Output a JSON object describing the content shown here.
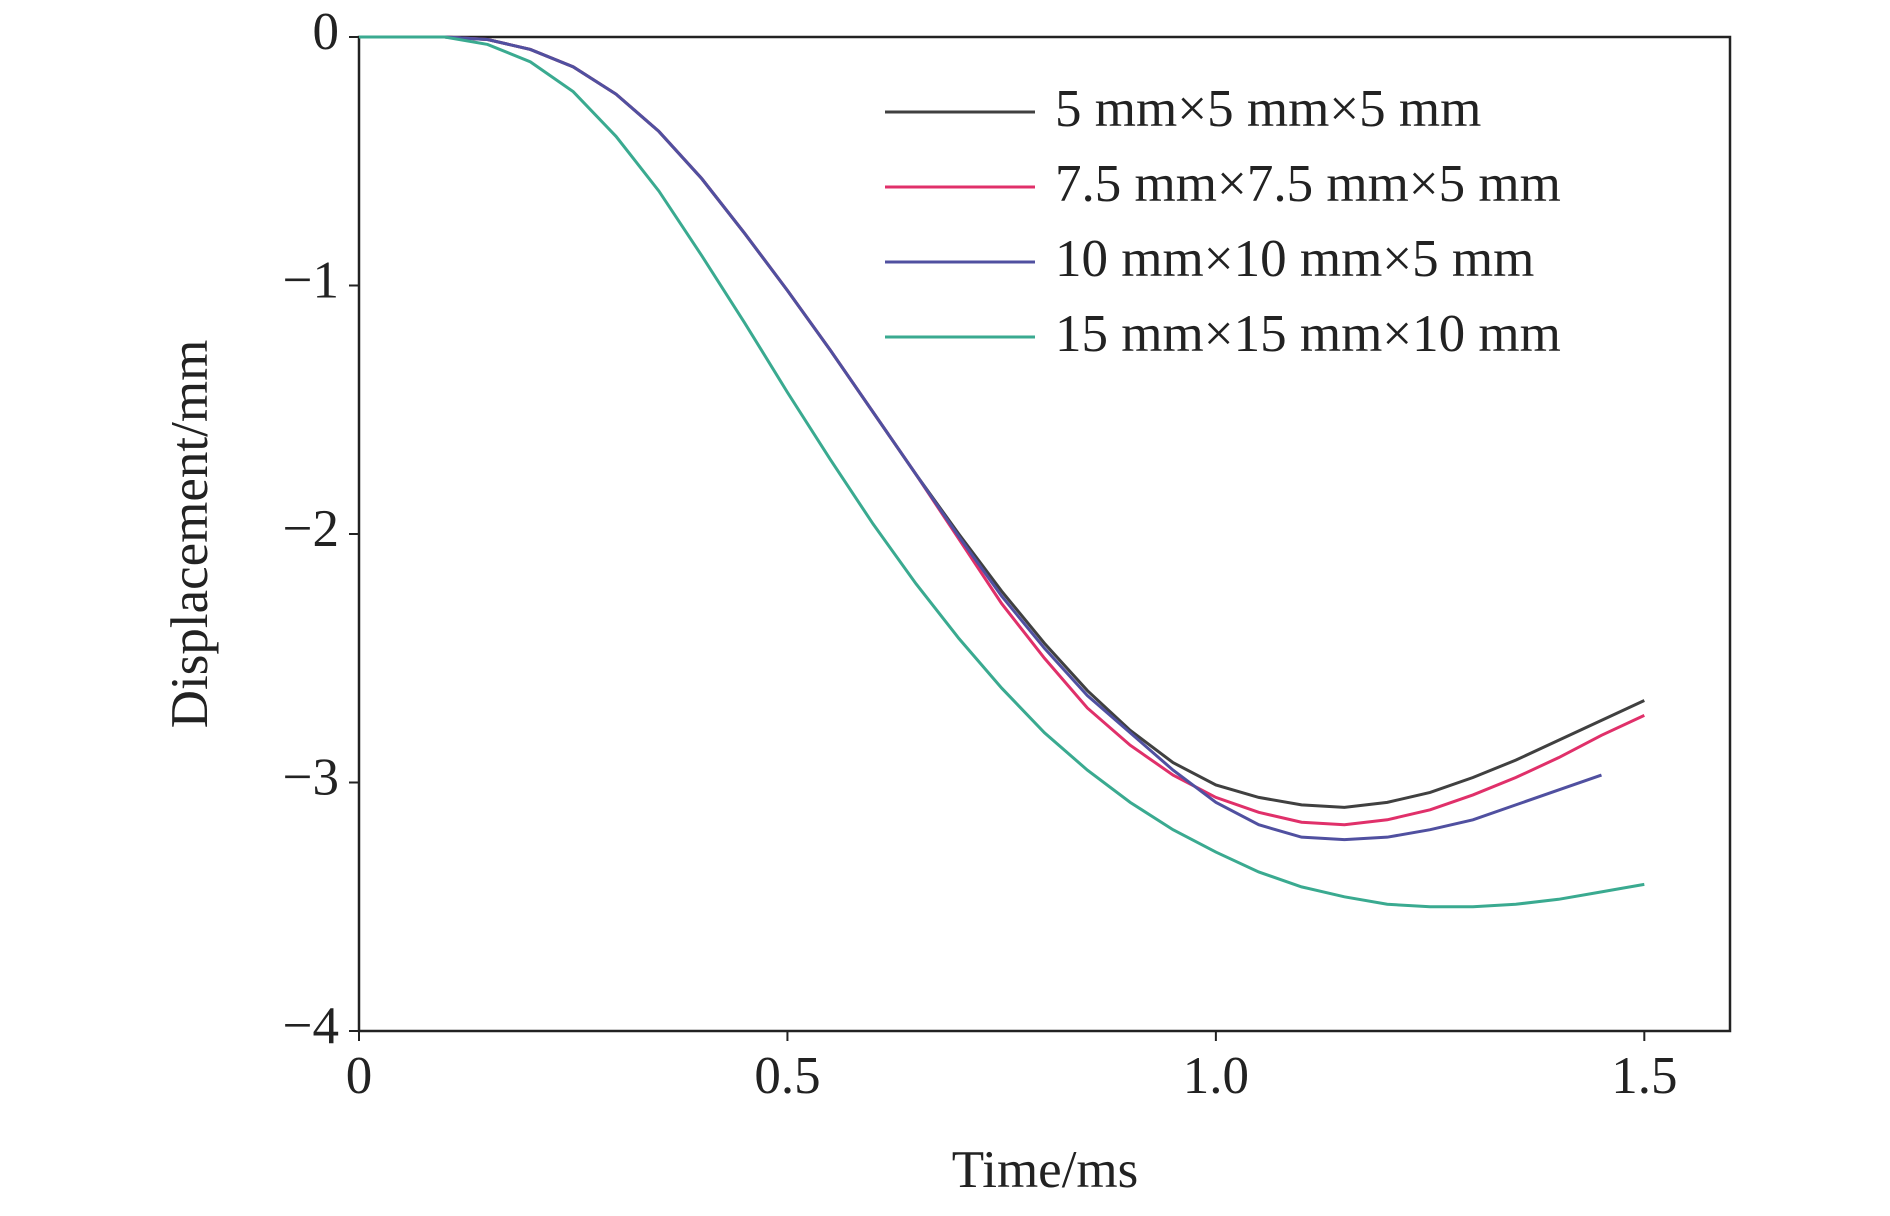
{
  "chart_data": {
    "type": "line",
    "x_label": "Time/ms",
    "y_label": "Displacement/mm",
    "x": [
      0,
      0.05,
      0.1,
      0.15,
      0.2,
      0.25,
      0.3,
      0.35,
      0.4,
      0.45,
      0.5,
      0.55,
      0.6,
      0.65,
      0.7,
      0.75,
      0.8,
      0.85,
      0.9,
      0.95,
      1.0,
      1.05,
      1.1,
      1.15,
      1.2,
      1.25,
      1.3,
      1.35,
      1.4,
      1.45,
      1.5
    ],
    "series": [
      {
        "name": "5 mm×5 mm×5 mm",
        "color": "#404040",
        "values": [
          0,
          0,
          0,
          -0.01,
          -0.05,
          -0.12,
          -0.23,
          -0.38,
          -0.57,
          -0.79,
          -1.02,
          -1.26,
          -1.51,
          -1.76,
          -2.0,
          -2.23,
          -2.44,
          -2.63,
          -2.79,
          -2.92,
          -3.01,
          -3.06,
          -3.09,
          -3.1,
          -3.08,
          -3.04,
          -2.98,
          -2.91,
          -2.83,
          -2.75,
          -2.67
        ]
      },
      {
        "name": "7.5 mm×7.5 mm×5 mm",
        "color": "#e0306a",
        "values": [
          0,
          0,
          0,
          -0.01,
          -0.05,
          -0.12,
          -0.23,
          -0.38,
          -0.57,
          -0.79,
          -1.02,
          -1.26,
          -1.51,
          -1.76,
          -2.02,
          -2.28,
          -2.5,
          -2.7,
          -2.85,
          -2.97,
          -3.06,
          -3.12,
          -3.16,
          -3.17,
          -3.15,
          -3.11,
          -3.05,
          -2.98,
          -2.9,
          -2.81,
          -2.73
        ]
      },
      {
        "name": "10 mm×10 mm×5 mm",
        "color": "#5050a0",
        "values": [
          0,
          0,
          0,
          -0.01,
          -0.05,
          -0.12,
          -0.23,
          -0.38,
          -0.57,
          -0.79,
          -1.02,
          -1.26,
          -1.51,
          -1.76,
          -2.01,
          -2.25,
          -2.46,
          -2.65,
          -2.8,
          -2.95,
          -3.08,
          -3.17,
          -3.22,
          -3.23,
          -3.22,
          -3.19,
          -3.15,
          -3.09,
          -3.03,
          -2.97,
          null
        ]
      },
      {
        "name": "15 mm×15 mm×10 mm",
        "color": "#3aaa90",
        "values": [
          0,
          0,
          0,
          -0.03,
          -0.1,
          -0.22,
          -0.4,
          -0.62,
          -0.88,
          -1.15,
          -1.43,
          -1.7,
          -1.96,
          -2.2,
          -2.42,
          -2.62,
          -2.8,
          -2.95,
          -3.08,
          -3.19,
          -3.28,
          -3.36,
          -3.42,
          -3.46,
          -3.49,
          -3.5,
          -3.5,
          -3.49,
          -3.47,
          -3.44,
          -3.41
        ]
      }
    ],
    "xlim": [
      0,
      1.6
    ],
    "ylim": [
      -4,
      0
    ],
    "xticks": [
      0,
      0.5,
      {
        "value": 1,
        "label": "1.0"
      },
      1.5
    ],
    "yticks": [
      {
        "value": -4,
        "label": "−4"
      },
      {
        "value": -3,
        "label": "−3"
      },
      {
        "value": -2,
        "label": "−2"
      },
      {
        "value": -1,
        "label": "−1"
      },
      0
    ],
    "grid": false,
    "legend": "upper right"
  }
}
